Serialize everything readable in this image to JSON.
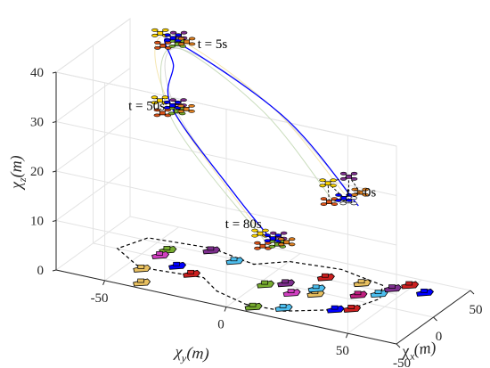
{
  "chart_data": {
    "type": "scatter",
    "title": "",
    "xlabel": "χx(m)",
    "ylabel": "χy(m)",
    "zlabel": "χz(m)",
    "axis_labels": {
      "x": {
        "main": "χ",
        "sub": "x",
        "rest": "(m)"
      },
      "y": {
        "main": "χ",
        "sub": "y",
        "rest": "(m)"
      },
      "z": {
        "main": "χ",
        "sub": "z",
        "rest": "(m)"
      }
    },
    "xlim": [
      -50,
      50
    ],
    "ylim": [
      -70,
      70
    ],
    "zlim": [
      0,
      40
    ],
    "xticks": [
      -50,
      0,
      50
    ],
    "yticks": [
      -50,
      0,
      50
    ],
    "zticks": [
      0,
      10,
      20,
      30,
      40
    ],
    "grid": true,
    "annotations": [
      {
        "text": "t = 5s",
        "at": [
          36,
          -38,
          39
        ]
      },
      {
        "text": "t = 50s",
        "at": [
          -18,
          -50,
          31
        ]
      },
      {
        "text": "t = 0s",
        "at": [
          40,
          22,
          15
        ]
      },
      {
        "text": "t = 80s",
        "at": [
          -58,
          2,
          17
        ]
      }
    ],
    "uav_groups": [
      {
        "time": "t = 0s",
        "center": [
          25,
          25,
          17
        ],
        "members": [
          [
            -5,
            -4,
            -1,
            "#d95319"
          ],
          [
            -5,
            4,
            0,
            "#ffffff"
          ],
          [
            0,
            -6,
            2,
            "#ffd700"
          ],
          [
            2,
            2,
            4,
            "#7e2f8e"
          ],
          [
            5,
            -1,
            -1,
            "#0000ff"
          ],
          [
            4,
            6,
            1,
            "#e08020"
          ]
        ]
      },
      {
        "time": "t = 5s",
        "center": [
          25,
          -45,
          41
        ],
        "members": [
          [
            -3,
            -3,
            -1,
            "#d95319"
          ],
          [
            -3,
            3,
            0,
            "#77ac30"
          ],
          [
            0,
            -5,
            1,
            "#ffd700"
          ],
          [
            2,
            2,
            1,
            "#7e2f8e"
          ],
          [
            4,
            -1,
            0,
            "#0000ff"
          ],
          [
            3,
            5,
            0,
            "#e08020"
          ]
        ]
      },
      {
        "time": "t = 50s",
        "center": [
          -15,
          -33,
          33
        ],
        "members": [
          [
            -3,
            -3,
            -1,
            "#d95319"
          ],
          [
            -3,
            3,
            0,
            "#77ac30"
          ],
          [
            0,
            -5,
            1,
            "#ffd700"
          ],
          [
            2,
            2,
            1,
            "#7e2f8e"
          ],
          [
            4,
            -1,
            0,
            "#0000ff"
          ],
          [
            3,
            5,
            0,
            "#e08020"
          ]
        ]
      },
      {
        "time": "t = 80s",
        "center": [
          -47,
          18,
          15
        ],
        "members": [
          [
            -3,
            -3,
            -1,
            "#d95319"
          ],
          [
            -3,
            3,
            0,
            "#77ac30"
          ],
          [
            0,
            -5,
            1,
            "#ffd700"
          ],
          [
            2,
            2,
            1,
            "#7e2f8e"
          ],
          [
            4,
            -1,
            0,
            "#0000ff"
          ],
          [
            3,
            5,
            0,
            "#e08020"
          ]
        ]
      }
    ],
    "formation_links_t0": [
      [
        0,
        1
      ],
      [
        1,
        3
      ],
      [
        3,
        5
      ],
      [
        5,
        4
      ],
      [
        2,
        4
      ],
      [
        0,
        2
      ],
      [
        2,
        3
      ]
    ],
    "leader_path": {
      "color": "#0000ff",
      "points": [
        [
          30,
          30,
          15
        ],
        [
          28,
          0,
          30
        ],
        [
          25,
          -45,
          41
        ],
        [
          10,
          -40,
          38
        ],
        [
          -15,
          -33,
          33
        ],
        [
          -40,
          0,
          22
        ],
        [
          -47,
          18,
          15
        ]
      ]
    },
    "follower_paths": [
      {
        "color": "#f5e6b0",
        "points": [
          [
            28,
            25,
            17
          ],
          [
            26,
            -5,
            32
          ],
          [
            23,
            -47,
            42
          ],
          [
            -14,
            -35,
            34
          ],
          [
            -44,
            10,
            17
          ]
        ]
      },
      {
        "color": "#d8d8d8",
        "points": [
          [
            25,
            28,
            18
          ],
          [
            22,
            -5,
            33
          ],
          [
            21,
            -43,
            40
          ],
          [
            -16,
            -30,
            32
          ],
          [
            -48,
            16,
            16
          ]
        ]
      },
      {
        "color": "#c9dcbc",
        "points": [
          [
            22,
            22,
            16
          ],
          [
            24,
            -8,
            31
          ],
          [
            22,
            -44,
            40
          ],
          [
            -18,
            -32,
            31
          ],
          [
            -50,
            18,
            14
          ]
        ]
      }
    ],
    "usv_loop": {
      "points": [
        [
          -40,
          5,
          0
        ],
        [
          -38,
          20,
          0
        ],
        [
          -15,
          40,
          0
        ],
        [
          10,
          45,
          0
        ],
        [
          30,
          40,
          0
        ],
        [
          40,
          20,
          0
        ],
        [
          35,
          0,
          0
        ],
        [
          20,
          -10,
          0
        ],
        [
          30,
          -30,
          0
        ],
        [
          25,
          -55,
          0
        ],
        [
          0,
          -60,
          0
        ],
        [
          -20,
          -45,
          0
        ],
        [
          -15,
          -20,
          0
        ],
        [
          -30,
          -10,
          0
        ],
        [
          -40,
          5,
          0
        ]
      ]
    },
    "usvs": [
      {
        "pos": [
          -40,
          8,
          0
        ],
        "color": "#77ac30"
      },
      {
        "pos": [
          -32,
          18,
          0
        ],
        "color": "#4dbeee"
      },
      {
        "pos": [
          -18,
          35,
          0
        ],
        "color": "#0000ff"
      },
      {
        "pos": [
          -12,
          40,
          0
        ],
        "color": "#cc2020"
      },
      {
        "pos": [
          -8,
          14,
          0
        ],
        "color": "#d040c0"
      },
      {
        "pos": [
          -2,
          22,
          0
        ],
        "color": "#e8c060"
      },
      {
        "pos": [
          -4,
          2,
          0
        ],
        "color": "#77ac30"
      },
      {
        "pos": [
          4,
          8,
          0
        ],
        "color": "#7e2f8e"
      },
      {
        "pos": [
          6,
          20,
          0
        ],
        "color": "#4dbeee"
      },
      {
        "pos": [
          10,
          36,
          0
        ],
        "color": "#c02080"
      },
      {
        "pos": [
          18,
          42,
          0
        ],
        "color": "#4dbeee"
      },
      {
        "pos": [
          30,
          44,
          0
        ],
        "color": "#7e2f8e"
      },
      {
        "pos": [
          34,
          56,
          0
        ],
        "color": "#0000ff"
      },
      {
        "pos": [
          28,
          32,
          0
        ],
        "color": "#e8c060"
      },
      {
        "pos": [
          25,
          18,
          0
        ],
        "color": "#cc2020"
      },
      {
        "pos": [
          40,
          48,
          0
        ],
        "color": "#cc2020"
      },
      {
        "pos": [
          28,
          -30,
          0
        ],
        "color": "#7e2f8e"
      },
      {
        "pos": [
          20,
          -18,
          0
        ],
        "color": "#4dbeee"
      },
      {
        "pos": [
          15,
          -44,
          0
        ],
        "color": "#77ac30"
      },
      {
        "pos": [
          5,
          -44,
          0
        ],
        "color": "#d040c0"
      },
      {
        "pos": [
          -5,
          -34,
          0
        ],
        "color": "#0000ff"
      },
      {
        "pos": [
          -20,
          -44,
          0
        ],
        "color": "#e8c060"
      },
      {
        "pos": [
          -12,
          -26,
          0
        ],
        "color": "#cc2020"
      },
      {
        "pos": [
          -40,
          -38,
          0
        ],
        "color": "#e8c060"
      }
    ]
  }
}
